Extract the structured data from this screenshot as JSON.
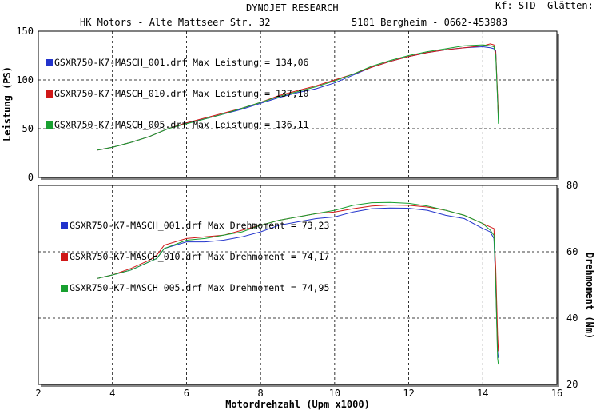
{
  "header": {
    "title": "DYNOJET RESEARCH",
    "settings": "Kf: STD  Glätten: 5",
    "shop": "HK Motors - Alte Mattseer Str. 32",
    "contact": "5101 Bergheim - 0662-453983"
  },
  "colors": {
    "blue": "#2233cc",
    "red": "#d01818",
    "green": "#18a030"
  },
  "chart_data": [
    {
      "type": "line",
      "xlabel": "Motordrehzahl (Upm x1000)",
      "ylabel": "Leistung (PS)",
      "xlim": [
        2,
        16
      ],
      "ylim": [
        0,
        150
      ],
      "xticks": [
        "2",
        "4",
        "6",
        "8",
        "10",
        "12",
        "14",
        "16"
      ],
      "yticks": [
        "0",
        "50",
        "100",
        "150"
      ],
      "grid": true,
      "legend": "top-left",
      "series": [
        {
          "name": "GSXR750-K7-MASCH_001.drf Max Leistung = 134,06",
          "color": "blue",
          "x": [
            3.6,
            4,
            4.5,
            5,
            5.5,
            6,
            6.5,
            7,
            7.5,
            8,
            8.5,
            9,
            9.5,
            10,
            10.5,
            11,
            11.5,
            12,
            12.5,
            13,
            13.5,
            14,
            14.2,
            14.3,
            14.35,
            14.4,
            14.42
          ],
          "y": [
            28,
            31,
            36,
            42,
            50,
            56,
            60,
            65,
            70,
            76,
            82,
            87,
            91,
            97,
            105,
            113,
            119,
            124,
            128,
            131,
            133,
            134,
            133,
            132,
            130,
            80,
            60
          ]
        },
        {
          "name": "GSXR750-K7-MASCH_010.drf Max Leistung = 137,10",
          "color": "red",
          "x": [
            3.6,
            4,
            4.5,
            5,
            5.5,
            6,
            6.5,
            7,
            7.5,
            8,
            8.5,
            9,
            9.5,
            10,
            10.5,
            11,
            11.5,
            12,
            12.5,
            13,
            13.5,
            14,
            14.2,
            14.3,
            14.35,
            14.4,
            14.42
          ],
          "y": [
            28,
            31,
            36,
            42,
            50,
            56,
            61,
            66,
            71,
            77,
            84,
            89,
            94,
            100,
            106,
            113,
            119,
            124,
            128,
            131,
            133,
            135,
            137,
            136,
            128,
            85,
            65
          ]
        },
        {
          "name": "GSXR750-K7-MASCH_005.drf Max Leistung = 136,11",
          "color": "green",
          "x": [
            3.6,
            4,
            4.5,
            5,
            5.5,
            6,
            6.5,
            7,
            7.5,
            8,
            8.5,
            9,
            9.5,
            10,
            10.5,
            11,
            11.5,
            12,
            12.5,
            13,
            13.5,
            14,
            14.2,
            14.3,
            14.35,
            14.4,
            14.42
          ],
          "y": [
            28,
            31,
            36,
            42,
            50,
            55,
            60,
            65,
            71,
            77,
            83,
            88,
            93,
            99,
            106,
            114,
            120,
            125,
            129,
            132,
            135,
            136,
            135,
            134,
            125,
            80,
            55
          ]
        }
      ]
    },
    {
      "type": "line",
      "ylabel": "Drehmoment (Nm)",
      "xlim": [
        2,
        16
      ],
      "ylim": [
        20,
        80
      ],
      "yticks": [
        "20",
        "40",
        "60",
        "80"
      ],
      "grid": true,
      "legend": "top-left",
      "series": [
        {
          "name": "GSXR750-K7-MASCH_001.drf Max Drehmoment = 73,23",
          "color": "blue",
          "x": [
            3.6,
            4,
            4.5,
            5,
            5.2,
            5.4,
            6,
            6.5,
            7,
            7.5,
            8,
            8.5,
            9,
            9.5,
            10,
            10.5,
            11,
            11.5,
            12,
            12.5,
            13,
            13.5,
            14,
            14.2,
            14.3,
            14.35,
            14.4,
            14.42
          ],
          "y": [
            52,
            53,
            54.5,
            57,
            58,
            61,
            63,
            63,
            63.5,
            64.5,
            66,
            68,
            69,
            70,
            70.5,
            72,
            73,
            73.2,
            73.1,
            72.5,
            71,
            70,
            67,
            66,
            64,
            50,
            30,
            28
          ]
        },
        {
          "name": "GSXR750-K7-MASCH_010.drf Max Drehmoment = 74,17",
          "color": "red",
          "x": [
            3.6,
            4,
            4.5,
            5,
            5.2,
            5.4,
            6,
            6.5,
            7,
            7.5,
            8,
            8.5,
            9,
            9.5,
            10,
            10.5,
            11,
            11.5,
            12,
            12.5,
            13,
            13.5,
            14,
            14.2,
            14.3,
            14.35,
            14.4,
            14.42
          ],
          "y": [
            52,
            53,
            55,
            57.5,
            59,
            62,
            64,
            64.5,
            65,
            66.5,
            68,
            69.5,
            70.5,
            71.5,
            72,
            73,
            73.8,
            74.1,
            74,
            73.5,
            72.5,
            71,
            68.5,
            67.5,
            67,
            55,
            35,
            30
          ]
        },
        {
          "name": "GSXR750-K7-MASCH_005.drf Max Drehmoment = 74,95",
          "color": "green",
          "x": [
            3.6,
            4,
            4.5,
            5,
            5.2,
            5.4,
            6,
            6.5,
            7,
            7.5,
            8,
            8.5,
            9,
            9.5,
            10,
            10.5,
            11,
            11.5,
            12,
            12.5,
            13,
            13.5,
            14,
            14.2,
            14.3,
            14.35,
            14.4,
            14.42
          ],
          "y": [
            52,
            53,
            54.5,
            57,
            58,
            61,
            63.5,
            64,
            65,
            66,
            68,
            69.5,
            70.5,
            71.5,
            72.5,
            74,
            74.8,
            74.9,
            74.6,
            73.8,
            72.5,
            71,
            68.5,
            66.5,
            65,
            50,
            28,
            26
          ]
        }
      ]
    }
  ]
}
